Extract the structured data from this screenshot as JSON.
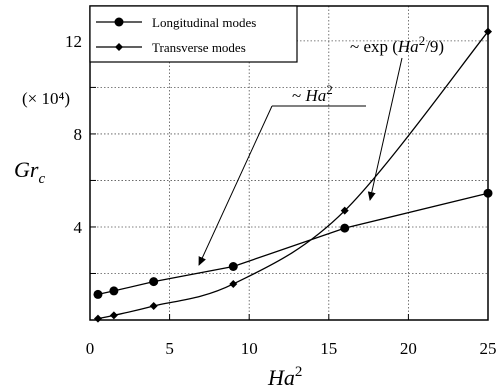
{
  "chart_data": {
    "type": "line",
    "xlabel": "Ha",
    "xlabel_superscript": "2",
    "ylabel": "Gr",
    "ylabel_subscript": "c",
    "y_scale_label": "(× 10⁴)",
    "xlim": [
      0,
      25
    ],
    "ylim": [
      0,
      13.5
    ],
    "x_ticks": [
      0,
      5,
      10,
      15,
      20,
      25
    ],
    "y_ticks": [
      4,
      8,
      12
    ],
    "grid": true,
    "legend_position": "top-left",
    "series": [
      {
        "name": "Longitudinal modes",
        "marker": "circle",
        "points": [
          [
            0.5,
            1.1
          ],
          [
            1.5,
            1.25
          ],
          [
            4,
            1.65
          ],
          [
            9,
            2.3
          ],
          [
            16,
            3.95
          ],
          [
            25,
            5.45
          ]
        ]
      },
      {
        "name": "Transverse modes",
        "marker": "diamond",
        "points": [
          [
            0.5,
            0.06
          ],
          [
            1.5,
            0.2
          ],
          [
            4,
            0.6
          ],
          [
            9,
            1.55
          ],
          [
            16,
            4.7
          ],
          [
            25,
            12.4
          ]
        ]
      }
    ],
    "annotations": [
      {
        "prefix": "~ ",
        "italic": "Ha",
        "sup": "2",
        "suffix": ""
      },
      {
        "prefix": "~ exp (",
        "italic": "Ha",
        "sup": "2",
        "suffix": "/9)"
      }
    ]
  }
}
